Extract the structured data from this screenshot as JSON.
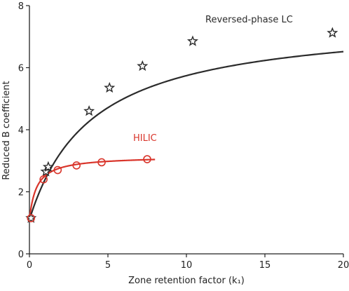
{
  "chart_data": {
    "type": "scatter",
    "xlabel": "Zone retention factor (k₁)",
    "ylabel": "Reduced B coefficient",
    "xlim": [
      0,
      20
    ],
    "ylim": [
      0,
      8
    ],
    "xticks": [
      "0",
      "5",
      "10",
      "15",
      "20"
    ],
    "yticks": [
      "0",
      "2",
      "4",
      "6",
      "8"
    ],
    "grid": false,
    "series": [
      {
        "name": "Reversed-phase LC",
        "color": "#2b2b2b",
        "marker": "star",
        "points": [
          {
            "x": 0.1,
            "y": 1.15
          },
          {
            "x": 1.05,
            "y": 2.65
          },
          {
            "x": 1.2,
            "y": 2.8
          },
          {
            "x": 3.8,
            "y": 4.6
          },
          {
            "x": 5.1,
            "y": 5.35
          },
          {
            "x": 7.2,
            "y": 6.05
          },
          {
            "x": 10.4,
            "y": 6.85
          },
          {
            "x": 19.3,
            "y": 7.12
          }
        ],
        "fit": {
          "model": "hyperbolic",
          "y0": 1.1,
          "ymax": 7.6,
          "k50": 4.0,
          "xmin": 0,
          "xmax": 20
        }
      },
      {
        "name": "HILIC",
        "color": "#d9352b",
        "marker": "circle",
        "points": [
          {
            "x": 0.1,
            "y": 1.15
          },
          {
            "x": 0.9,
            "y": 2.4
          },
          {
            "x": 1.8,
            "y": 2.7
          },
          {
            "x": 3.0,
            "y": 2.85
          },
          {
            "x": 4.6,
            "y": 2.95
          },
          {
            "x": 7.5,
            "y": 3.05
          }
        ],
        "fit": {
          "model": "hyperbolic",
          "y0": 1.1,
          "ymax": 3.15,
          "k50": 0.45,
          "xmin": 0,
          "xmax": 8
        }
      }
    ]
  }
}
